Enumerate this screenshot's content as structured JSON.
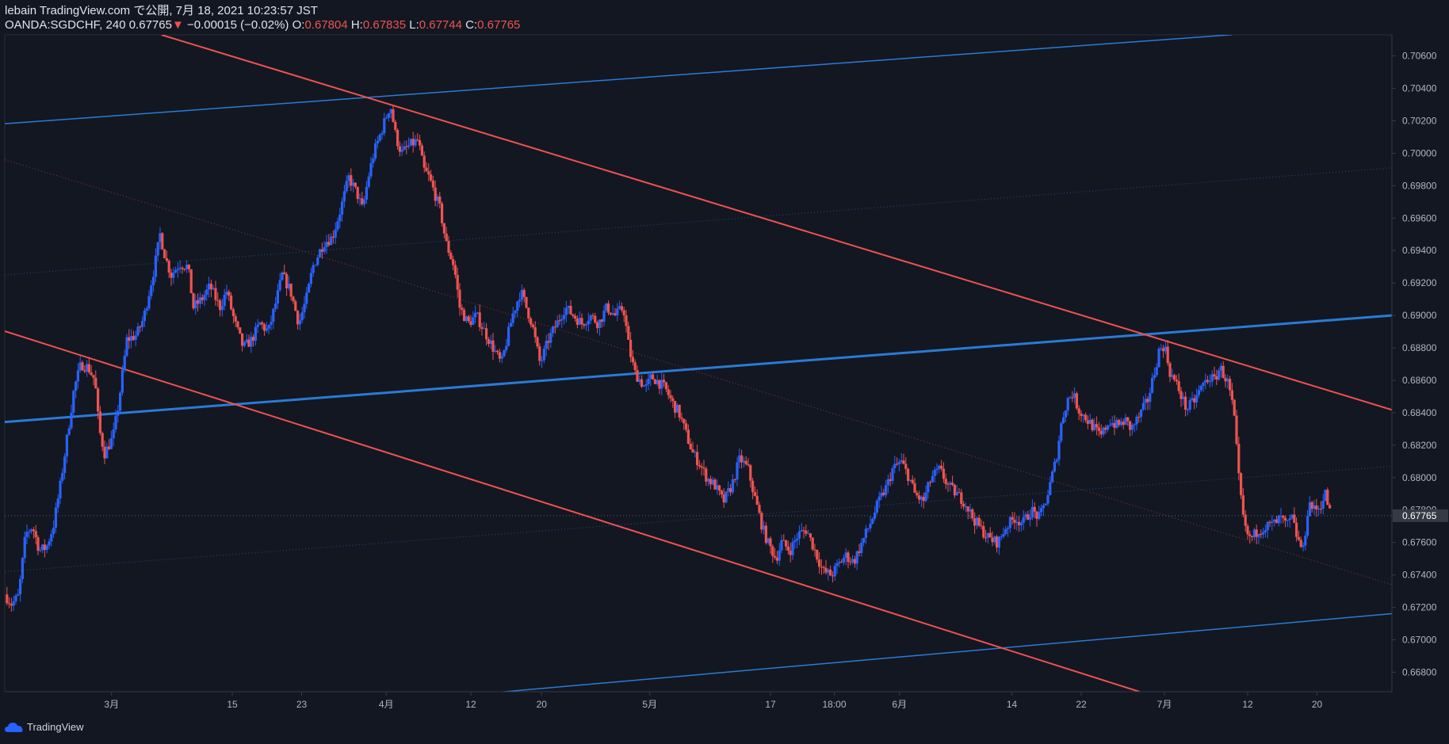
{
  "header": {
    "line1": "lebain TradingView.com で公開, 7月 18, 2021 10:23:57 JST",
    "symbol_tf": "OANDA:SGDCHF, 240",
    "last": "0.67765",
    "arrow": "▼",
    "change": "−0.00015 (−0.02%)",
    "o_label": "O:",
    "o_value": "0.67804",
    "h_label": "H:",
    "h_value": "0.67835",
    "l_label": "L:",
    "l_value": "0.67744",
    "c_label": "C:",
    "c_value": "0.67765"
  },
  "footer": {
    "brand": "TradingView"
  },
  "colors": {
    "background": "#131722",
    "up": "#2962ff",
    "down": "#ef5350",
    "grid": "#1e222d",
    "axis_text": "#b2b5be",
    "blue_line": "#2a7bd6",
    "red_line": "#ef5350"
  },
  "chart_data": {
    "type": "candlestick",
    "title": "OANDA:SGDCHF, 240",
    "ylim": [
      0.6668,
      0.7073
    ],
    "xlim": [
      0,
      1000
    ],
    "y_ticks": [
      "0.70600",
      "0.70400",
      "0.70200",
      "0.70000",
      "0.69800",
      "0.69600",
      "0.69400",
      "0.69200",
      "0.69000",
      "0.68800",
      "0.68600",
      "0.68400",
      "0.68200",
      "0.68000",
      "0.67800",
      "0.67600",
      "0.67400",
      "0.67200",
      "0.67000",
      "0.66800"
    ],
    "x_ticks": [
      {
        "label": "3月",
        "x": 77
      },
      {
        "label": "15",
        "x": 164
      },
      {
        "label": "23",
        "x": 214
      },
      {
        "label": "4月",
        "x": 275
      },
      {
        "label": "12",
        "x": 336
      },
      {
        "label": "20",
        "x": 387
      },
      {
        "label": "5月",
        "x": 465
      },
      {
        "label": "17",
        "x": 552
      },
      {
        "label": "18:00",
        "x": 598
      },
      {
        "label": "6月",
        "x": 645
      },
      {
        "label": "14",
        "x": 726
      },
      {
        "label": "22",
        "x": 776
      },
      {
        "label": "7月",
        "x": 836
      },
      {
        "label": "12",
        "x": 896
      },
      {
        "label": "20",
        "x": 946
      }
    ],
    "last_price": "0.67765",
    "last_value": 0.67765,
    "price_path": [
      [
        0,
        0.6728
      ],
      [
        5,
        0.6722
      ],
      [
        10,
        0.6727
      ],
      [
        15,
        0.6765
      ],
      [
        20,
        0.677
      ],
      [
        25,
        0.6755
      ],
      [
        30,
        0.6757
      ],
      [
        35,
        0.677
      ],
      [
        40,
        0.6795
      ],
      [
        45,
        0.6825
      ],
      [
        50,
        0.6855
      ],
      [
        55,
        0.687
      ],
      [
        60,
        0.6868
      ],
      [
        65,
        0.686
      ],
      [
        68,
        0.683
      ],
      [
        72,
        0.6815
      ],
      [
        78,
        0.6825
      ],
      [
        82,
        0.6845
      ],
      [
        88,
        0.6885
      ],
      [
        95,
        0.6888
      ],
      [
        100,
        0.6898
      ],
      [
        108,
        0.693
      ],
      [
        112,
        0.695
      ],
      [
        116,
        0.6935
      ],
      [
        120,
        0.6925
      ],
      [
        126,
        0.6932
      ],
      [
        132,
        0.693
      ],
      [
        136,
        0.6905
      ],
      [
        142,
        0.691
      ],
      [
        148,
        0.6918
      ],
      [
        155,
        0.6905
      ],
      [
        160,
        0.6915
      ],
      [
        166,
        0.6895
      ],
      [
        172,
        0.688
      ],
      [
        178,
        0.6885
      ],
      [
        184,
        0.6895
      ],
      [
        190,
        0.689
      ],
      [
        196,
        0.691
      ],
      [
        200,
        0.6925
      ],
      [
        206,
        0.6915
      ],
      [
        212,
        0.6895
      ],
      [
        218,
        0.6912
      ],
      [
        222,
        0.693
      ],
      [
        230,
        0.6945
      ],
      [
        236,
        0.6948
      ],
      [
        242,
        0.6965
      ],
      [
        248,
        0.6985
      ],
      [
        254,
        0.6975
      ],
      [
        258,
        0.6965
      ],
      [
        262,
        0.6985
      ],
      [
        266,
        0.7
      ],
      [
        272,
        0.7015
      ],
      [
        278,
        0.703
      ],
      [
        282,
        0.701
      ],
      [
        286,
        0.7
      ],
      [
        292,
        0.7005
      ],
      [
        298,
        0.7008
      ],
      [
        302,
        0.699
      ],
      [
        306,
        0.6985
      ],
      [
        310,
        0.6975
      ],
      [
        314,
        0.6965
      ],
      [
        318,
        0.6945
      ],
      [
        324,
        0.693
      ],
      [
        328,
        0.6905
      ],
      [
        334,
        0.6895
      ],
      [
        340,
        0.69
      ],
      [
        346,
        0.689
      ],
      [
        352,
        0.688
      ],
      [
        358,
        0.687
      ],
      [
        362,
        0.6885
      ],
      [
        366,
        0.69
      ],
      [
        372,
        0.6915
      ],
      [
        376,
        0.6905
      ],
      [
        380,
        0.6895
      ],
      [
        386,
        0.687
      ],
      [
        392,
        0.6885
      ],
      [
        398,
        0.6895
      ],
      [
        404,
        0.6905
      ],
      [
        410,
        0.69
      ],
      [
        416,
        0.6895
      ],
      [
        422,
        0.69
      ],
      [
        428,
        0.6895
      ],
      [
        434,
        0.6905
      ],
      [
        440,
        0.69
      ],
      [
        446,
        0.6905
      ],
      [
        450,
        0.688
      ],
      [
        454,
        0.6865
      ],
      [
        458,
        0.686
      ],
      [
        462,
        0.6855
      ],
      [
        466,
        0.6862
      ],
      [
        470,
        0.686
      ],
      [
        476,
        0.6855
      ],
      [
        482,
        0.6845
      ],
      [
        486,
        0.684
      ],
      [
        490,
        0.683
      ],
      [
        496,
        0.6815
      ],
      [
        500,
        0.681
      ],
      [
        506,
        0.68
      ],
      [
        512,
        0.6795
      ],
      [
        518,
        0.6785
      ],
      [
        524,
        0.6795
      ],
      [
        530,
        0.6812
      ],
      [
        536,
        0.6805
      ],
      [
        540,
        0.679
      ],
      [
        546,
        0.677
      ],
      [
        550,
        0.676
      ],
      [
        556,
        0.675
      ],
      [
        560,
        0.676
      ],
      [
        566,
        0.6755
      ],
      [
        572,
        0.6765
      ],
      [
        578,
        0.6768
      ],
      [
        584,
        0.6755
      ],
      [
        590,
        0.6742
      ],
      [
        596,
        0.674
      ],
      [
        600,
        0.6745
      ],
      [
        606,
        0.6752
      ],
      [
        612,
        0.6748
      ],
      [
        618,
        0.676
      ],
      [
        624,
        0.6772
      ],
      [
        630,
        0.6785
      ],
      [
        636,
        0.6795
      ],
      [
        640,
        0.6805
      ],
      [
        646,
        0.681
      ],
      [
        652,
        0.68
      ],
      [
        656,
        0.679
      ],
      [
        662,
        0.6785
      ],
      [
        668,
        0.68
      ],
      [
        674,
        0.6805
      ],
      [
        680,
        0.6795
      ],
      [
        686,
        0.679
      ],
      [
        692,
        0.6785
      ],
      [
        698,
        0.6775
      ],
      [
        704,
        0.6768
      ],
      [
        710,
        0.6762
      ],
      [
        716,
        0.676
      ],
      [
        722,
        0.677
      ],
      [
        728,
        0.6775
      ],
      [
        734,
        0.6772
      ],
      [
        740,
        0.678
      ],
      [
        746,
        0.6775
      ],
      [
        752,
        0.679
      ],
      [
        758,
        0.6812
      ],
      [
        762,
        0.6835
      ],
      [
        766,
        0.6848
      ],
      [
        770,
        0.6852
      ],
      [
        774,
        0.6842
      ],
      [
        778,
        0.6838
      ],
      [
        784,
        0.6832
      ],
      [
        790,
        0.6825
      ],
      [
        796,
        0.6835
      ],
      [
        802,
        0.6832
      ],
      [
        808,
        0.6835
      ],
      [
        812,
        0.683
      ],
      [
        818,
        0.6838
      ],
      [
        824,
        0.6848
      ],
      [
        828,
        0.6862
      ],
      [
        832,
        0.6878
      ],
      [
        836,
        0.6882
      ],
      [
        840,
        0.6865
      ],
      [
        846,
        0.6855
      ],
      [
        852,
        0.6842
      ],
      [
        858,
        0.6848
      ],
      [
        862,
        0.6855
      ],
      [
        868,
        0.6862
      ],
      [
        872,
        0.686
      ],
      [
        876,
        0.6868
      ],
      [
        882,
        0.6858
      ],
      [
        886,
        0.684
      ],
      [
        890,
        0.6795
      ],
      [
        894,
        0.6768
      ],
      [
        898,
        0.6762
      ],
      [
        904,
        0.6768
      ],
      [
        910,
        0.677
      ],
      [
        916,
        0.6772
      ],
      [
        920,
        0.6775
      ],
      [
        924,
        0.677
      ],
      [
        928,
        0.6775
      ],
      [
        932,
        0.6762
      ],
      [
        936,
        0.6755
      ],
      [
        940,
        0.6785
      ],
      [
        944,
        0.678
      ],
      [
        948,
        0.6782
      ],
      [
        952,
        0.679
      ],
      [
        956,
        0.6776
      ]
    ],
    "trendlines": [
      {
        "name": "upper-blue",
        "color": "blue",
        "width": 1.5,
        "style": "solid",
        "x1": 0,
        "y1": 0.70182,
        "x2": 885,
        "y2": 0.70731
      },
      {
        "name": "middle-blue",
        "color": "blue",
        "width": 3,
        "style": "solid",
        "x1": 0,
        "y1": 0.68343,
        "x2": 1000,
        "y2": 0.69
      },
      {
        "name": "lower-blue",
        "color": "blue",
        "width": 1.5,
        "style": "solid",
        "x1": 355,
        "y1": 0.66676,
        "x2": 1000,
        "y2": 0.67161
      },
      {
        "name": "upper-red",
        "color": "red",
        "width": 2,
        "style": "solid",
        "x1": 113,
        "y1": 0.7073,
        "x2": 1000,
        "y2": 0.68418
      },
      {
        "name": "lower-red",
        "color": "red",
        "width": 2,
        "style": "solid",
        "x1": 0,
        "y1": 0.68903,
        "x2": 818,
        "y2": 0.6668
      },
      {
        "name": "mid-red-dotted",
        "color": "red",
        "width": 1,
        "style": "dotted",
        "x1": 0,
        "y1": 0.6996,
        "x2": 1000,
        "y2": 0.6734
      },
      {
        "name": "blue-dotted-upper",
        "color": "blue",
        "width": 1,
        "style": "dotted",
        "x1": 0,
        "y1": 0.6925,
        "x2": 1000,
        "y2": 0.6991
      },
      {
        "name": "blue-dotted-lower",
        "color": "blue",
        "width": 1,
        "style": "dotted",
        "x1": 0,
        "y1": 0.6742,
        "x2": 1000,
        "y2": 0.6807
      }
    ]
  }
}
